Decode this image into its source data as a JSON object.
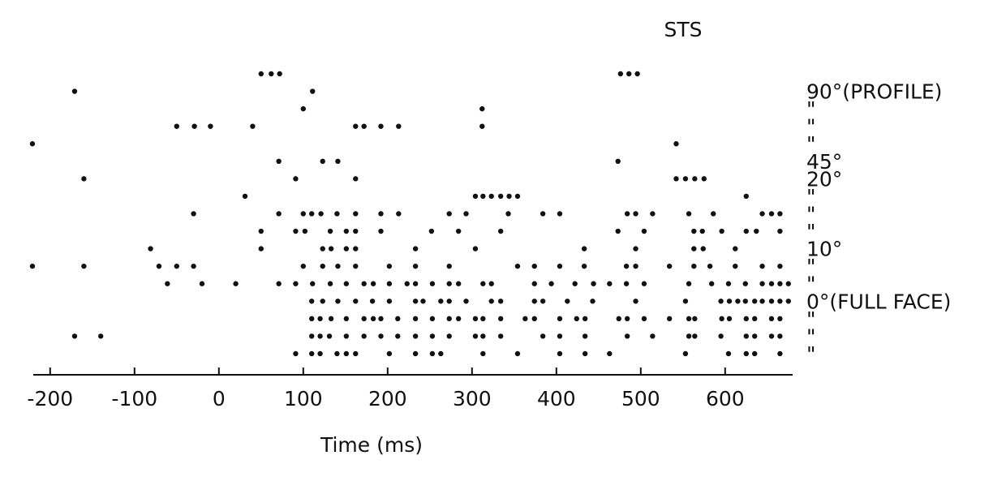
{
  "chart_data": {
    "type": "raster",
    "title": "STS",
    "x_label": "Time (ms)",
    "xlim": [
      -220,
      680
    ],
    "xticks": [
      -200,
      -100,
      0,
      100,
      200,
      300,
      400,
      500,
      600
    ],
    "color": "#111111",
    "rows": [
      {
        "label": null,
        "times": [
          50,
          62,
          72,
          476,
          486,
          496
        ]
      },
      {
        "label": "90°(PROFILE)",
        "times": [
          -171,
          111
        ]
      },
      {
        "label": "\"",
        "times": [
          100,
          312
        ]
      },
      {
        "label": "\"",
        "times": [
          -50,
          -29,
          -10,
          40,
          162,
          172,
          192,
          213,
          312
        ]
      },
      {
        "label": "\"",
        "times": [
          -221,
          542
        ]
      },
      {
        "label": "45°",
        "times": [
          71,
          123,
          141,
          473
        ]
      },
      {
        "label": "20°",
        "times": [
          -160,
          91,
          162,
          542,
          553,
          564,
          575
        ]
      },
      {
        "label": "\"",
        "times": [
          31,
          304,
          313,
          323,
          334,
          344,
          354,
          625
        ]
      },
      {
        "label": "\"",
        "times": [
          -30,
          71,
          100,
          110,
          121,
          140,
          162,
          192,
          213,
          273,
          293,
          343,
          384,
          404,
          484,
          494,
          514,
          557,
          586,
          644,
          655,
          665
        ]
      },
      {
        "label": "\"",
        "times": [
          50,
          91,
          102,
          132,
          151,
          162,
          192,
          252,
          284,
          334,
          473,
          504,
          563,
          573,
          596,
          625,
          637,
          665
        ]
      },
      {
        "label": "10°",
        "times": [
          -81,
          50,
          123,
          133,
          151,
          162,
          233,
          304,
          433,
          494,
          563,
          574,
          612
        ]
      },
      {
        "label": "\"",
        "times": [
          -221,
          -160,
          -71,
          -50,
          -30,
          100,
          123,
          141,
          162,
          202,
          233,
          273,
          354,
          374,
          404,
          433,
          483,
          494,
          534,
          563,
          582,
          612,
          644,
          665
        ]
      },
      {
        "label": "\"",
        "times": [
          -61,
          -20,
          20,
          71,
          91,
          111,
          132,
          151,
          172,
          183,
          202,
          223,
          233,
          253,
          273,
          284,
          313,
          323,
          374,
          394,
          422,
          444,
          463,
          483,
          504,
          557,
          584,
          604,
          624,
          644,
          655,
          665,
          675
        ]
      },
      {
        "label": "0°(FULL FACE)",
        "times": [
          110,
          123,
          141,
          162,
          182,
          202,
          233,
          242,
          263,
          273,
          293,
          323,
          334,
          374,
          384,
          413,
          443,
          494,
          553,
          595,
          605,
          615,
          624,
          635,
          644,
          655,
          665,
          675
        ]
      },
      {
        "label": "\"",
        "times": [
          110,
          120,
          133,
          151,
          172,
          183,
          192,
          212,
          233,
          253,
          273,
          284,
          304,
          313,
          334,
          363,
          374,
          404,
          424,
          434,
          474,
          484,
          504,
          534,
          557,
          564,
          596,
          605,
          625,
          635,
          655,
          665
        ]
      },
      {
        "label": "\"",
        "times": [
          -171,
          -140,
          110,
          120,
          131,
          151,
          172,
          192,
          212,
          233,
          253,
          273,
          304,
          313,
          334,
          384,
          404,
          434,
          484,
          514,
          557,
          564,
          595,
          625,
          635,
          655,
          665
        ]
      },
      {
        "label": "\"",
        "times": [
          91,
          110,
          120,
          140,
          151,
          162,
          202,
          233,
          253,
          263,
          313,
          354,
          404,
          434,
          463,
          553,
          604,
          625,
          635,
          665
        ]
      }
    ]
  }
}
